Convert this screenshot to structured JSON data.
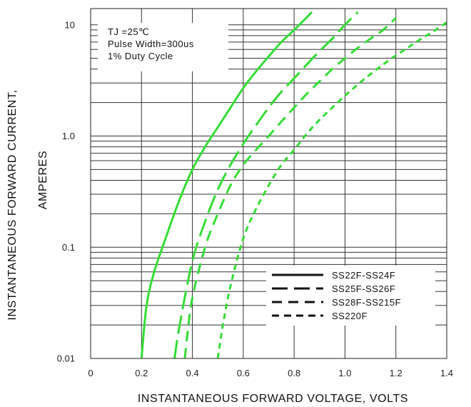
{
  "chart_data": {
    "type": "line",
    "title": "",
    "xlabel": "INSTANTANEOUS FORWARD VOLTAGE, VOLTS",
    "ylabel_lines": [
      "INSTANTANEOUS FORWARD CURRENT,",
      "AMPERES"
    ],
    "xlim": [
      0,
      1.4
    ],
    "ylim": [
      0.01,
      10
    ],
    "yscale": "log",
    "grid": true,
    "x_ticks": [
      0,
      0.2,
      0.4,
      0.6,
      0.8,
      1.0,
      1.2,
      1.4
    ],
    "x_tick_labels": [
      "0",
      "0.2",
      "0.4",
      "0.6",
      "0.8",
      "1.0",
      "1.2",
      "1.4"
    ],
    "y_ticks": [
      0.01,
      0.1,
      1.0,
      10
    ],
    "y_tick_labels": [
      "0.01",
      "0.1",
      "1.0",
      "10"
    ],
    "annotations": [
      "TJ =25℃",
      "Pulse Width=300us",
      "1% Duty Cycle"
    ],
    "legend_position": "bottom-right",
    "line_color": "#33dd33",
    "series": [
      {
        "name": "SS22F-SS24F",
        "dash": "solid",
        "x": [
          0.2,
          0.22,
          0.25,
          0.3,
          0.35,
          0.4,
          0.45,
          0.5,
          0.55,
          0.6,
          0.65,
          0.7,
          0.75,
          0.8,
          0.87
        ],
        "y": [
          0.01,
          0.03,
          0.06,
          0.13,
          0.27,
          0.5,
          0.8,
          1.2,
          1.8,
          2.7,
          3.8,
          5.2,
          7.0,
          9.0,
          13.0
        ]
      },
      {
        "name": "SS25F-SS26F",
        "dash": "long-dash",
        "x": [
          0.33,
          0.35,
          0.4,
          0.45,
          0.5,
          0.55,
          0.6,
          0.65,
          0.7,
          0.75,
          0.8,
          0.85,
          0.9,
          0.95,
          1.0,
          1.05
        ],
        "y": [
          0.01,
          0.02,
          0.075,
          0.17,
          0.33,
          0.55,
          0.85,
          1.25,
          1.8,
          2.5,
          3.3,
          4.4,
          5.8,
          7.5,
          10.0,
          13.0
        ]
      },
      {
        "name": "SS28F-SS215F",
        "dash": "dash",
        "x": [
          0.37,
          0.38,
          0.4,
          0.45,
          0.5,
          0.55,
          0.6,
          0.65,
          0.7,
          0.75,
          0.8,
          0.85,
          0.9,
          0.95,
          1.0,
          1.05,
          1.1,
          1.15,
          1.2
        ],
        "y": [
          0.01,
          0.016,
          0.035,
          0.1,
          0.2,
          0.36,
          0.55,
          0.75,
          1.0,
          1.35,
          1.8,
          2.4,
          3.1,
          4.0,
          5.0,
          6.2,
          7.5,
          9.0,
          11.5
        ]
      },
      {
        "name": "SS220F",
        "dash": "short-dash",
        "x": [
          0.5,
          0.52,
          0.55,
          0.6,
          0.65,
          0.7,
          0.75,
          0.8,
          0.85,
          0.9,
          0.95,
          1.0,
          1.05,
          1.1,
          1.15,
          1.2,
          1.25,
          1.3,
          1.35,
          1.4
        ],
        "y": [
          0.01,
          0.02,
          0.045,
          0.12,
          0.22,
          0.36,
          0.55,
          0.75,
          1.05,
          1.4,
          1.8,
          2.3,
          2.9,
          3.6,
          4.4,
          5.3,
          6.3,
          7.5,
          8.8,
          10.5
        ]
      }
    ]
  }
}
